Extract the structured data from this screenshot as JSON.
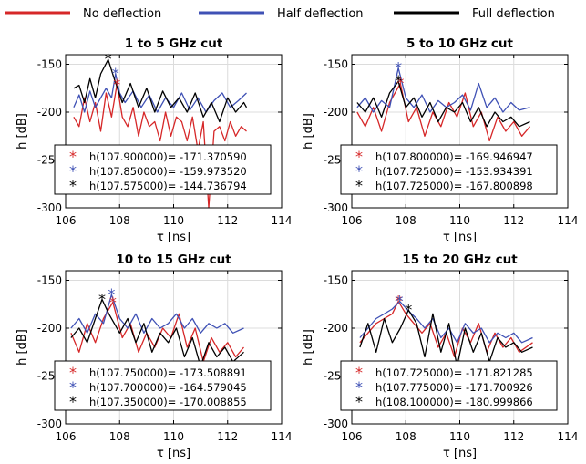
{
  "legend": {
    "items": [
      {
        "label": "No deflection",
        "color": "#d62728"
      },
      {
        "label": "Half deflection",
        "color": "#3f51b5"
      },
      {
        "label": "Full deflection",
        "color": "#000000"
      }
    ]
  },
  "chart_data": [
    {
      "type": "line",
      "title": "1 to 5 GHz cut",
      "xlabel": "τ [ns]",
      "ylabel": "h [dB]",
      "xlim": [
        106,
        114
      ],
      "ylim": [
        -300,
        -140
      ],
      "xticks": [
        106,
        108,
        110,
        112,
        114
      ],
      "yticks": [
        -300,
        -250,
        -200,
        -150
      ],
      "grid": true,
      "annotations": [
        {
          "text": "h(107.900000)= -171.370590",
          "color": "#d62728",
          "x": 107.9,
          "y": -171.37059
        },
        {
          "text": "h(107.850000)= -159.973520",
          "color": "#3f51b5",
          "x": 107.85,
          "y": -159.97352
        },
        {
          "text": "h(107.575000)= -144.736794",
          "color": "#000000",
          "x": 107.575,
          "y": -144.736794
        }
      ],
      "series": [
        {
          "name": "No deflection",
          "color": "#d62728",
          "x": [
            106.3,
            106.5,
            106.7,
            106.9,
            107.1,
            107.3,
            107.5,
            107.7,
            107.9,
            108.1,
            108.3,
            108.5,
            108.7,
            108.9,
            109.1,
            109.3,
            109.5,
            109.7,
            109.9,
            110.1,
            110.3,
            110.5,
            110.7,
            110.9,
            111.1,
            111.3,
            111.5,
            111.7,
            111.9,
            112.1,
            112.3,
            112.5,
            112.7
          ],
          "y": [
            -205,
            -215,
            -185,
            -210,
            -190,
            -220,
            -180,
            -205,
            -171,
            -205,
            -215,
            -195,
            -225,
            -200,
            -215,
            -210,
            -230,
            -200,
            -225,
            -205,
            -210,
            -230,
            -205,
            -240,
            -210,
            -300,
            -220,
            -215,
            -230,
            -210,
            -225,
            -215,
            -220
          ]
        },
        {
          "name": "Half deflection",
          "color": "#3f51b5",
          "x": [
            106.3,
            106.5,
            106.7,
            106.9,
            107.1,
            107.3,
            107.5,
            107.7,
            107.85,
            108.0,
            108.2,
            108.5,
            108.8,
            109.1,
            109.4,
            109.7,
            110.0,
            110.3,
            110.6,
            110.9,
            111.2,
            111.5,
            111.8,
            112.1,
            112.4,
            112.7
          ],
          "y": [
            -195,
            -182,
            -200,
            -178,
            -195,
            -185,
            -175,
            -185,
            -160,
            -180,
            -190,
            -178,
            -195,
            -182,
            -200,
            -185,
            -195,
            -180,
            -198,
            -185,
            -200,
            -188,
            -180,
            -195,
            -188,
            -180
          ]
        },
        {
          "name": "Full deflection",
          "color": "#000000",
          "x": [
            106.3,
            106.5,
            106.7,
            106.9,
            107.1,
            107.3,
            107.575,
            107.8,
            108.1,
            108.4,
            108.7,
            109.0,
            109.3,
            109.6,
            109.9,
            110.2,
            110.5,
            110.8,
            111.1,
            111.4,
            111.7,
            112.0,
            112.3,
            112.6,
            112.7
          ],
          "y": [
            -175,
            -172,
            -190,
            -165,
            -185,
            -160,
            -145,
            -165,
            -190,
            -170,
            -195,
            -175,
            -200,
            -178,
            -195,
            -185,
            -200,
            -180,
            -205,
            -190,
            -210,
            -185,
            -200,
            -190,
            -195
          ]
        }
      ]
    },
    {
      "type": "line",
      "title": "5 to 10 GHz cut",
      "xlabel": "τ [ns]",
      "ylabel": "h [dB]",
      "xlim": [
        106,
        114
      ],
      "ylim": [
        -300,
        -140
      ],
      "xticks": [
        106,
        108,
        110,
        112,
        114
      ],
      "yticks": [
        -300,
        -250,
        -200,
        -150
      ],
      "grid": true,
      "annotations": [
        {
          "text": "h(107.800000)= -169.946947",
          "color": "#d62728",
          "x": 107.8,
          "y": -169.946947
        },
        {
          "text": "h(107.725000)= -153.934391",
          "color": "#3f51b5",
          "x": 107.725,
          "y": -153.934391
        },
        {
          "text": "h(107.725000)= -167.800898",
          "color": "#000000",
          "x": 107.725,
          "y": -167.800898
        }
      ],
      "series": [
        {
          "name": "No deflection",
          "color": "#d62728",
          "x": [
            106.2,
            106.5,
            106.8,
            107.1,
            107.4,
            107.8,
            108.1,
            108.4,
            108.7,
            109.0,
            109.3,
            109.6,
            109.9,
            110.2,
            110.5,
            110.8,
            111.1,
            111.4,
            111.7,
            112.0,
            112.3,
            112.6
          ],
          "y": [
            -200,
            -215,
            -195,
            -220,
            -190,
            -170,
            -210,
            -195,
            -225,
            -200,
            -215,
            -190,
            -205,
            -180,
            -215,
            -200,
            -230,
            -205,
            -220,
            -210,
            -225,
            -215
          ]
        },
        {
          "name": "Half deflection",
          "color": "#3f51b5",
          "x": [
            106.2,
            106.5,
            106.8,
            107.1,
            107.4,
            107.725,
            108.0,
            108.3,
            108.6,
            108.9,
            109.2,
            109.5,
            109.8,
            110.1,
            110.4,
            110.7,
            111.0,
            111.3,
            111.6,
            111.9,
            112.2,
            112.6
          ],
          "y": [
            -195,
            -185,
            -200,
            -188,
            -195,
            -154,
            -185,
            -195,
            -182,
            -200,
            -188,
            -195,
            -190,
            -182,
            -198,
            -170,
            -195,
            -185,
            -200,
            -190,
            -198,
            -195
          ]
        },
        {
          "name": "Full deflection",
          "color": "#000000",
          "x": [
            106.2,
            106.5,
            106.8,
            107.1,
            107.4,
            107.725,
            108.0,
            108.3,
            108.6,
            108.9,
            109.2,
            109.5,
            109.8,
            110.1,
            110.4,
            110.7,
            111.0,
            111.3,
            111.6,
            111.9,
            112.2,
            112.6
          ],
          "y": [
            -190,
            -200,
            -185,
            -205,
            -180,
            -168,
            -195,
            -185,
            -205,
            -190,
            -210,
            -195,
            -200,
            -190,
            -210,
            -195,
            -215,
            -200,
            -210,
            -205,
            -215,
            -210
          ]
        }
      ]
    },
    {
      "type": "line",
      "title": "10 to 15 GHz cut",
      "xlabel": "τ [ns]",
      "ylabel": "h [dB]",
      "xlim": [
        106,
        114
      ],
      "ylim": [
        -300,
        -140
      ],
      "xticks": [
        106,
        108,
        110,
        112,
        114
      ],
      "yticks": [
        -300,
        -250,
        -200,
        -150
      ],
      "grid": true,
      "annotations": [
        {
          "text": "h(107.750000)= -173.508891",
          "color": "#d62728",
          "x": 107.75,
          "y": -173.508891
        },
        {
          "text": "h(107.700000)= -164.579045",
          "color": "#3f51b5",
          "x": 107.7,
          "y": -164.579045
        },
        {
          "text": "h(107.350000)= -170.008855",
          "color": "#000000",
          "x": 107.35,
          "y": -170.008855
        }
      ],
      "series": [
        {
          "name": "No deflection",
          "color": "#d62728",
          "x": [
            106.2,
            106.5,
            106.8,
            107.1,
            107.4,
            107.75,
            108.1,
            108.4,
            108.7,
            109.0,
            109.3,
            109.6,
            109.9,
            110.2,
            110.5,
            110.8,
            111.1,
            111.4,
            111.7,
            112.0,
            112.3,
            112.6
          ],
          "y": [
            -205,
            -225,
            -195,
            -215,
            -190,
            -173,
            -210,
            -195,
            -225,
            -205,
            -220,
            -200,
            -210,
            -185,
            -220,
            -200,
            -235,
            -210,
            -225,
            -215,
            -230,
            -220
          ]
        },
        {
          "name": "Half deflection",
          "color": "#3f51b5",
          "x": [
            106.2,
            106.5,
            106.8,
            107.1,
            107.4,
            107.7,
            108.0,
            108.3,
            108.6,
            108.9,
            109.2,
            109.5,
            109.8,
            110.1,
            110.4,
            110.7,
            111.0,
            111.3,
            111.6,
            111.9,
            112.2,
            112.6
          ],
          "y": [
            -200,
            -190,
            -205,
            -185,
            -195,
            -165,
            -190,
            -200,
            -185,
            -205,
            -190,
            -200,
            -195,
            -185,
            -200,
            -190,
            -205,
            -195,
            -200,
            -195,
            -205,
            -200
          ]
        },
        {
          "name": "Full deflection",
          "color": "#000000",
          "x": [
            106.2,
            106.5,
            106.8,
            107.1,
            107.35,
            107.6,
            108.0,
            108.3,
            108.6,
            108.9,
            109.2,
            109.5,
            109.8,
            110.1,
            110.4,
            110.7,
            111.0,
            111.3,
            111.6,
            111.9,
            112.2,
            112.6
          ],
          "y": [
            -210,
            -200,
            -215,
            -190,
            -170,
            -185,
            -205,
            -190,
            -215,
            -195,
            -225,
            -205,
            -215,
            -200,
            -230,
            -210,
            -240,
            -215,
            -230,
            -220,
            -235,
            -225
          ]
        }
      ]
    },
    {
      "type": "line",
      "title": "15 to 20 GHz cut",
      "xlabel": "τ [ns]",
      "ylabel": "h [dB]",
      "xlim": [
        106,
        114
      ],
      "ylim": [
        -300,
        -140
      ],
      "xticks": [
        106,
        108,
        110,
        112,
        114
      ],
      "yticks": [
        -300,
        -250,
        -200,
        -150
      ],
      "grid": true,
      "annotations": [
        {
          "text": "h(107.725000)= -171.821285",
          "color": "#d62728",
          "x": 107.725,
          "y": -171.821285
        },
        {
          "text": "h(107.775000)= -171.700926",
          "color": "#3f51b5",
          "x": 107.775,
          "y": -171.700926
        },
        {
          "text": "h(108.100000)= -180.999866",
          "color": "#000000",
          "x": 108.1,
          "y": -180.999866
        }
      ],
      "series": [
        {
          "name": "No deflection",
          "color": "#d62728",
          "x": [
            106.3,
            106.6,
            106.9,
            107.2,
            107.5,
            107.725,
            108.0,
            108.3,
            108.6,
            108.9,
            109.2,
            109.5,
            109.8,
            110.1,
            110.4,
            110.7,
            111.0,
            111.3,
            111.6,
            111.9,
            112.2,
            112.7
          ],
          "y": [
            -215,
            -205,
            -195,
            -190,
            -185,
            -172,
            -185,
            -195,
            -205,
            -195,
            -220,
            -205,
            -230,
            -200,
            -215,
            -195,
            -225,
            -205,
            -220,
            -210,
            -225,
            -215
          ]
        },
        {
          "name": "Half deflection",
          "color": "#3f51b5",
          "x": [
            106.3,
            106.6,
            106.9,
            107.2,
            107.5,
            107.775,
            108.1,
            108.4,
            108.7,
            109.0,
            109.3,
            109.6,
            109.9,
            110.2,
            110.5,
            110.8,
            111.1,
            111.4,
            111.7,
            112.0,
            112.3,
            112.7
          ],
          "y": [
            -210,
            -200,
            -190,
            -185,
            -180,
            -172,
            -182,
            -190,
            -200,
            -190,
            -210,
            -200,
            -215,
            -195,
            -205,
            -200,
            -215,
            -205,
            -210,
            -205,
            -215,
            -210
          ]
        },
        {
          "name": "Full deflection",
          "color": "#000000",
          "x": [
            106.3,
            106.6,
            106.9,
            107.2,
            107.5,
            107.8,
            108.1,
            108.4,
            108.7,
            109.0,
            109.3,
            109.6,
            109.9,
            110.2,
            110.5,
            110.8,
            111.1,
            111.4,
            111.7,
            112.0,
            112.3,
            112.7
          ],
          "y": [
            -220,
            -195,
            -225,
            -190,
            -215,
            -200,
            -181,
            -195,
            -230,
            -185,
            -225,
            -195,
            -240,
            -200,
            -225,
            -205,
            -235,
            -210,
            -220,
            -215,
            -225,
            -220
          ]
        }
      ]
    }
  ]
}
